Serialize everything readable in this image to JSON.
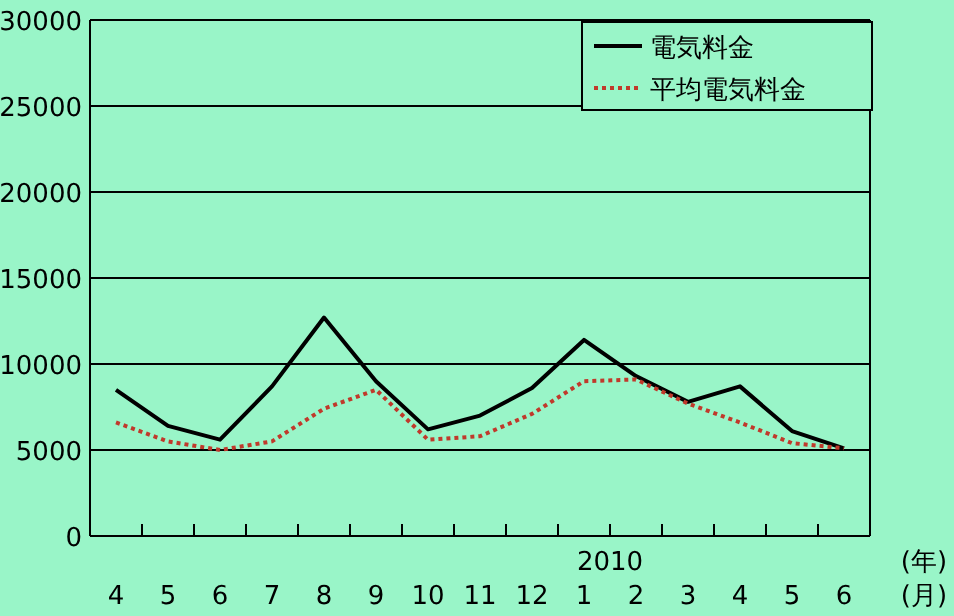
{
  "chart_data": {
    "type": "line",
    "categories": [
      "4",
      "5",
      "6",
      "7",
      "8",
      "9",
      "10",
      "11",
      "12",
      "1",
      "2",
      "3",
      "4",
      "5",
      "6"
    ],
    "series": [
      {
        "name": "電気料金",
        "color": "#000000",
        "line_style": "solid",
        "values": [
          8500,
          6400,
          5600,
          8700,
          12700,
          9000,
          6200,
          7000,
          8600,
          11400,
          9300,
          7800,
          8700,
          6100,
          5100
        ]
      },
      {
        "name": "平均電気料金",
        "color": "#c0392b",
        "line_style": "dotted",
        "values": [
          6600,
          5500,
          5000,
          5500,
          7400,
          8500,
          5600,
          5800,
          7100,
          9000,
          9100,
          7700,
          6600,
          5400,
          5100
        ]
      }
    ],
    "ylim": [
      0,
      30000
    ],
    "yticks": [
      0,
      5000,
      10000,
      15000,
      20000,
      25000,
      30000
    ],
    "grid": "y",
    "legend": "top right",
    "marker": "none",
    "annotations": [
      "2010",
      "(年)",
      "(月)"
    ]
  }
}
